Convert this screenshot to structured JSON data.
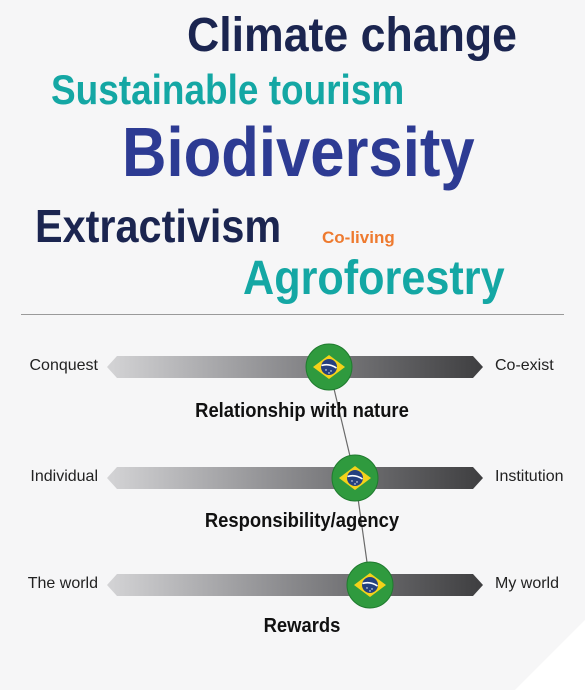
{
  "word_cloud": {
    "climate_change": "Climate change",
    "sustainable_tourism": "Sustainable tourism",
    "biodiversity": "Biodiversity",
    "extractivism": "Extractivism",
    "co_living": "Co-living",
    "agroforestry": "Agroforestry"
  },
  "colors": {
    "navy": "#1b2550",
    "teal": "#14a7a4",
    "indigo": "#2d3b93",
    "orange": "#ee7a2f"
  },
  "scales": [
    {
      "left": "Conquest",
      "right": "Co-exist",
      "title": "Relationship with nature",
      "position": 0.59
    },
    {
      "left": "Individual",
      "right": "Institution",
      "title": "Responsibility/agency",
      "position": 0.66
    },
    {
      "left": "The world",
      "right": "My world",
      "title": "Rewards",
      "position": 0.7
    }
  ],
  "marker_icon": "brazil-flag-icon"
}
